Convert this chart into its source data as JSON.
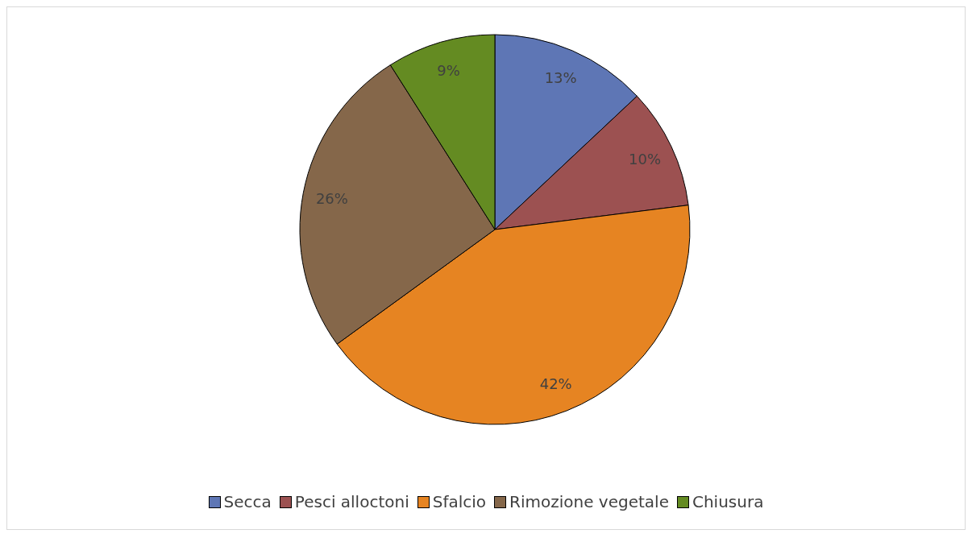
{
  "chart_data": {
    "type": "pie",
    "categories": [
      "Secca",
      "Pesci alloctoni",
      "Sfalcio",
      "Rimozione vegetale",
      "Chiusura"
    ],
    "values": [
      13,
      10,
      42,
      26,
      9
    ],
    "value_labels": [
      "13%",
      "10%",
      "42%",
      "26%",
      "9%"
    ],
    "colors": [
      "#5e76b5",
      "#9c5151",
      "#e68422",
      "#85674a",
      "#648b22"
    ],
    "legend": "bottom"
  }
}
